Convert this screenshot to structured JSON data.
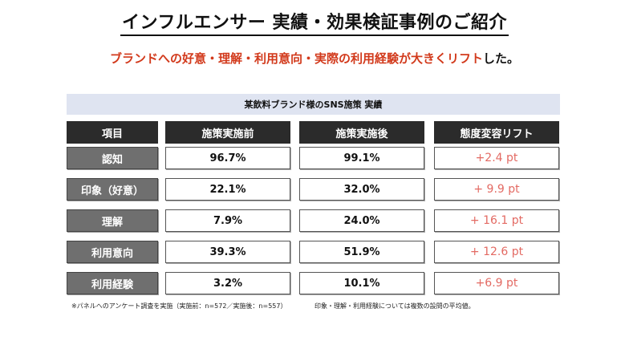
{
  "title": "インフルエンサー 実績・効果検証事例のご紹介",
  "subtitle": {
    "red": "ブランドへの好意・理解・利用意向・実際の利用経験が大きくリフト",
    "black": "した。"
  },
  "table": {
    "caption": "某飲料ブランド様のSNS施策 実績",
    "headers": [
      "項目",
      "施策実施前",
      "施策実施後",
      "態度変容リフト"
    ],
    "rows": [
      {
        "label": "認知",
        "before": "96.7%",
        "after": "99.1%",
        "lift": "+2.4 pt"
      },
      {
        "label": "印象（好意）",
        "before": "22.1%",
        "after": "32.0%",
        "lift": "+ 9.9 pt"
      },
      {
        "label": "理解",
        "before": "7.9%",
        "after": "24.0%",
        "lift": "+ 16.1 pt"
      },
      {
        "label": "利用意向",
        "before": "39.3%",
        "after": "51.9%",
        "lift": "+ 12.6 pt"
      },
      {
        "label": "利用経験",
        "before": "3.2%",
        "after": "10.1%",
        "lift": "+6.9 pt"
      }
    ]
  },
  "footnotes": [
    "※パネルへのアンケート調査を実施（実施前：n=572／実施後：n=557）",
    "印象・理解・利用経験については複数の設問の平均値。"
  ],
  "colors": {
    "accent_red": "#d23a1c",
    "lift_red": "#e36a63",
    "header_dark": "#2b2b2b",
    "label_gray": "#6f6f6f",
    "caption_bg": "#dfe4f1"
  }
}
